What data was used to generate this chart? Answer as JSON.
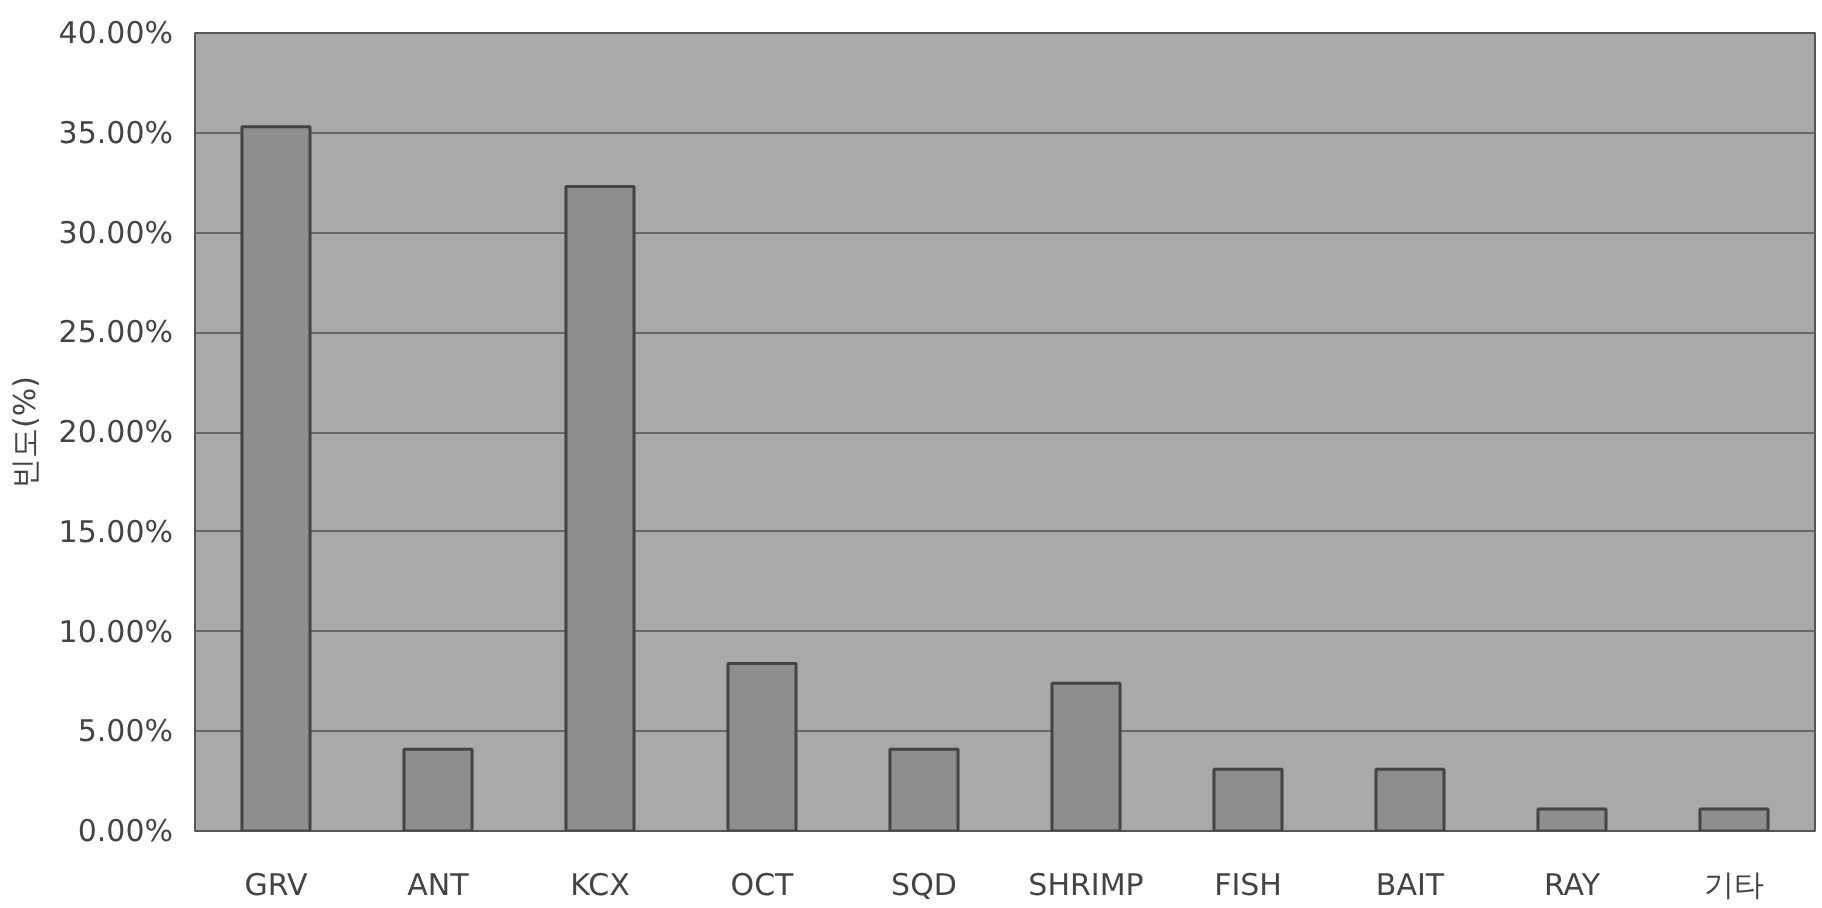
{
  "chart_data": {
    "type": "bar",
    "ylabel": "빈도(%)",
    "categories": [
      "GRV",
      "ANT",
      "KCX",
      "OCT",
      "SQD",
      "SHRIMP",
      "FISH",
      "BAIT",
      "RAY",
      "기타"
    ],
    "values": [
      35.3,
      4.1,
      32.3,
      8.4,
      4.1,
      7.4,
      3.1,
      3.1,
      1.1,
      1.1
    ],
    "color": "#8e8e8e",
    "ylim": [
      0,
      40
    ],
    "yticks": [
      {
        "value": 0,
        "label": "0.00%"
      },
      {
        "value": 5,
        "label": "5.00%"
      },
      {
        "value": 10,
        "label": "10.00%"
      },
      {
        "value": 15,
        "label": "15.00%"
      },
      {
        "value": 20,
        "label": "20.00%"
      },
      {
        "value": 25,
        "label": "25.00%"
      },
      {
        "value": 30,
        "label": "30.00%"
      },
      {
        "value": 35,
        "label": "35.00%"
      },
      {
        "value": 40,
        "label": "40.00%"
      }
    ],
    "grid": "y"
  }
}
